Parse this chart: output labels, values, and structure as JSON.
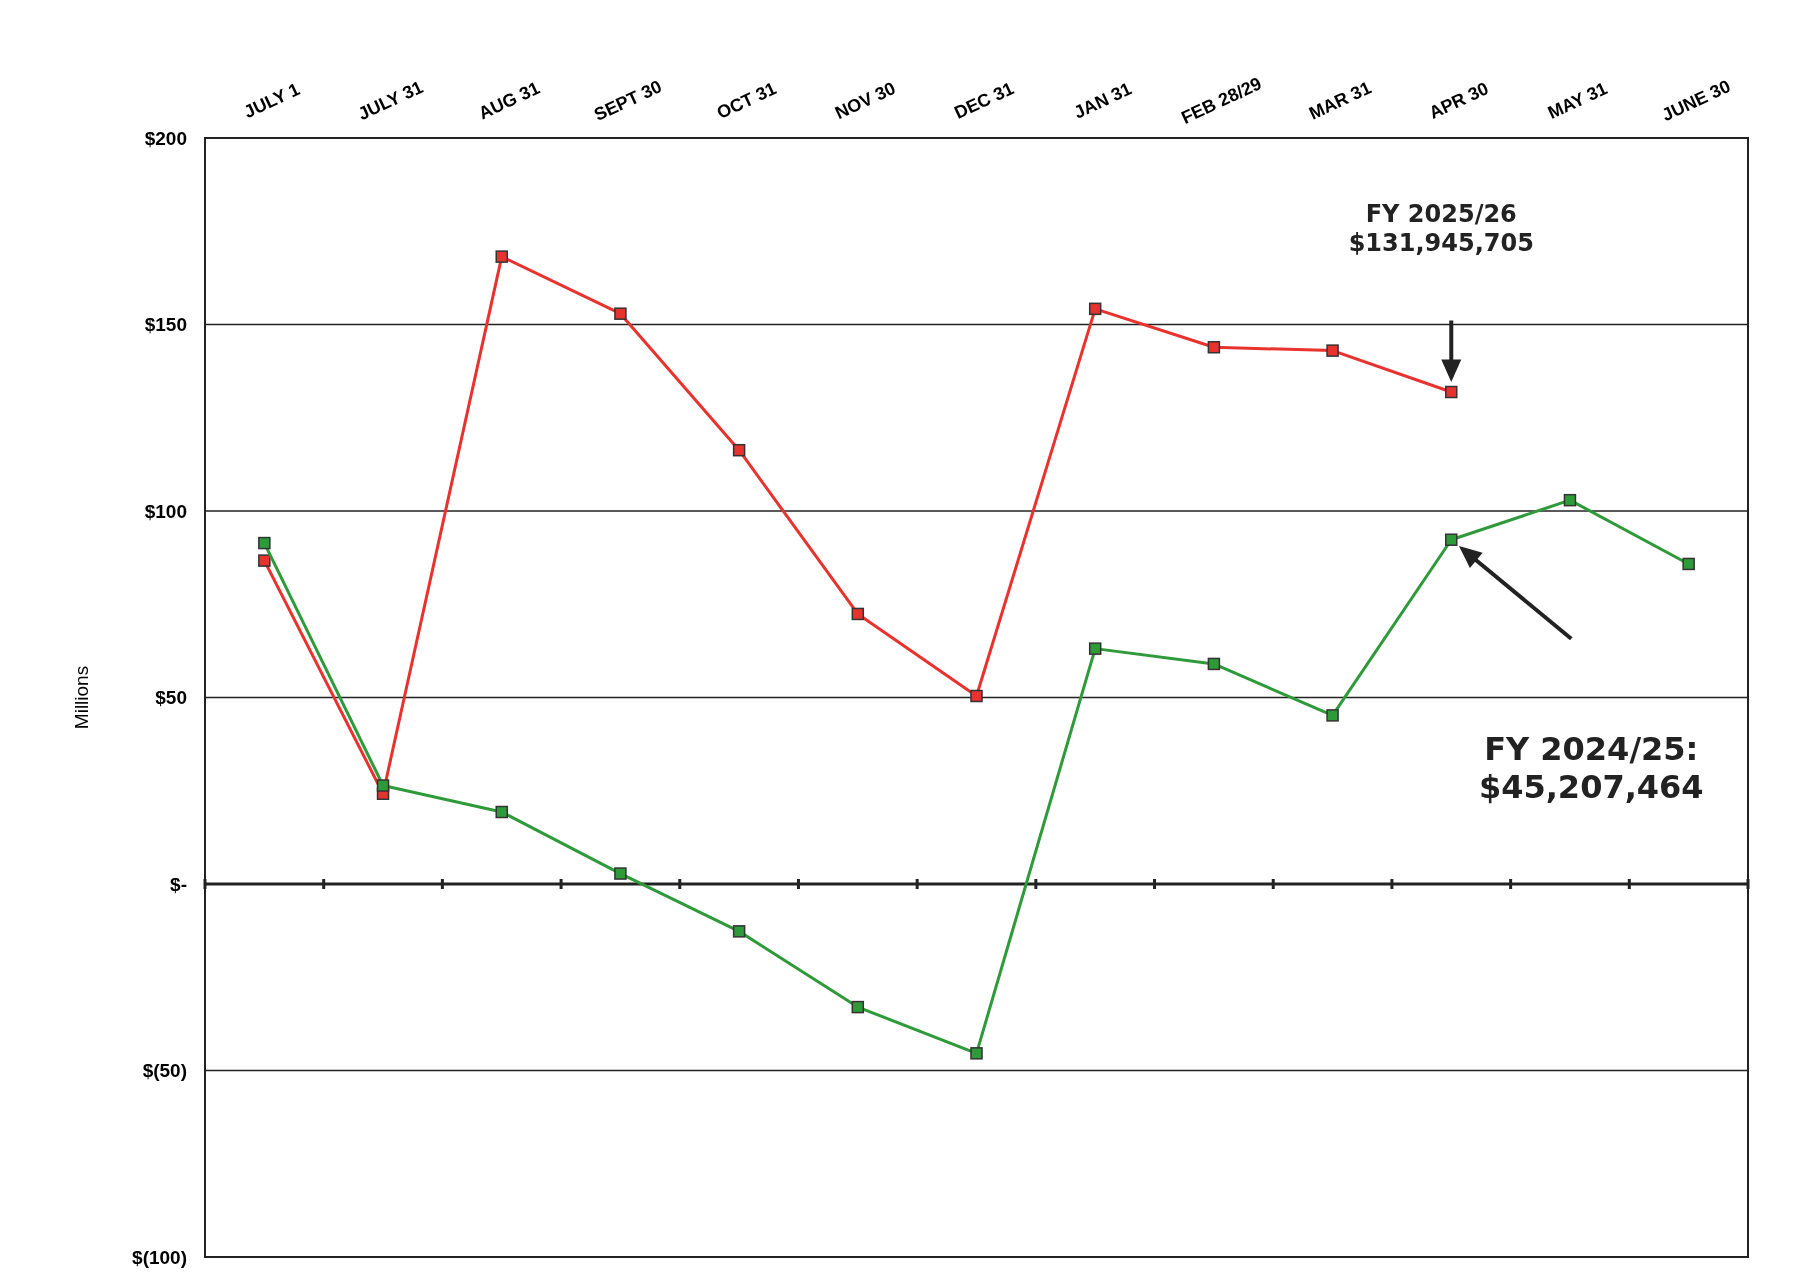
{
  "chart_data": {
    "type": "line",
    "ylabel": "Millions",
    "categories": [
      "JULY 1",
      "JULY 31",
      "AUG 31",
      "SEPT 30",
      "OCT 31",
      "NOV 30",
      "DEC 31",
      "JAN 31",
      "FEB 28/29",
      "MAR 31",
      "APR 30",
      "MAY 31",
      "JUNE 30"
    ],
    "series": [
      {
        "color": "#e8322e",
        "values": [
          86.7,
          24.2,
          168.2,
          152.9,
          116.3,
          72.4,
          50.4,
          154.2,
          143.9,
          143,
          131.9,
          null,
          null
        ]
      },
      {
        "color": "#2e9a3a",
        "values": [
          91.4,
          26.4,
          19.3,
          2.8,
          -12.7,
          -33,
          -45.4,
          63.1,
          59,
          45.2,
          92.3,
          102.9,
          85.8
        ]
      }
    ],
    "ylim": [
      -100,
      200
    ],
    "yticks": [
      {
        "value": 200,
        "label": "$200"
      },
      {
        "value": 150,
        "label": "$150"
      },
      {
        "value": 100,
        "label": "$100"
      },
      {
        "value": 50,
        "label": "$50"
      },
      {
        "value": 0,
        "label": "$-"
      },
      {
        "value": -50,
        "label": "$(50)"
      },
      {
        "value": -100,
        "label": "$(100)"
      }
    ],
    "grid": "y",
    "marker": "square",
    "line_style": "solid",
    "annotations": [
      "FY 2025/26\n$131,945,705",
      "FY 2024/25:\n$45,207,464"
    ]
  }
}
